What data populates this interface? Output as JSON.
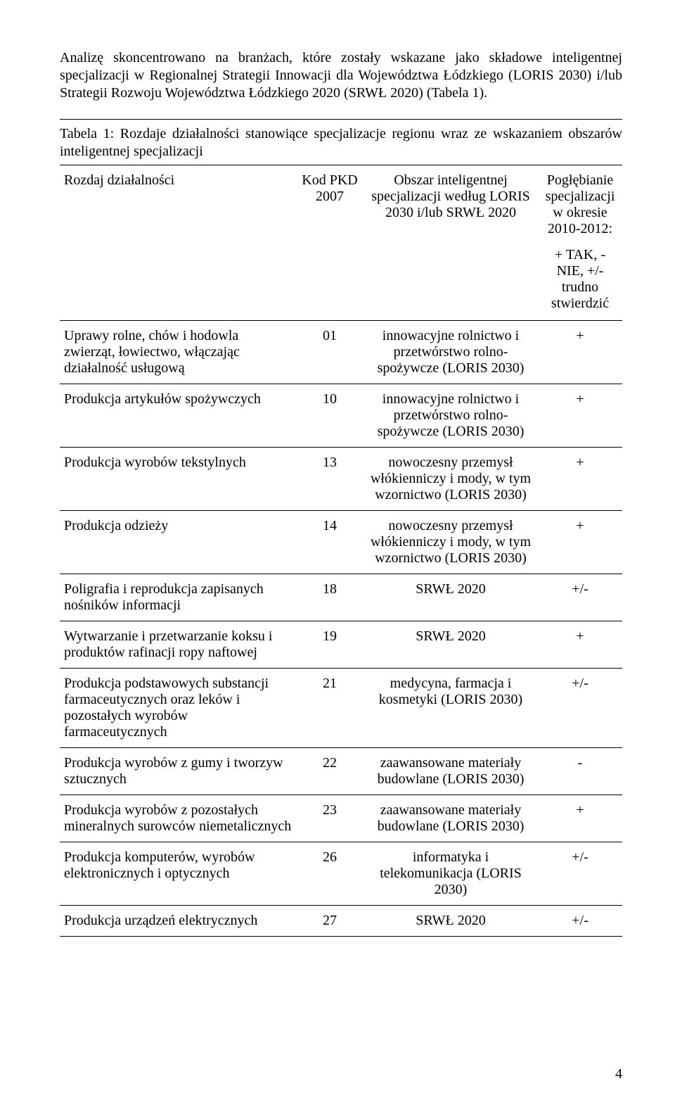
{
  "intro_text": "Analizę skoncentrowano na branżach, które zostały wskazane jako składowe inteligentnej specjalizacji w Regionalnej Strategii Innowacji dla Województwa Łódzkiego (LORIS 2030) i/lub Strategii Rozwoju Województwa Łódzkiego 2020 (SRWŁ 2020) (Tabela 1).",
  "table_caption": "Tabela 1: Rozdaje działalności stanowiące specjalizacje regionu wraz ze wskazaniem obszarów inteligentnej specjalizacji",
  "columns": {
    "col1": "Rozdaj działalności",
    "col2": "Kod PKD 2007",
    "col3": "Obszar inteligentnej specjalizacji według LORIS 2030 i/lub SRWŁ 2020",
    "col4_top": "Pogłębianie specjalizacji w okresie 2010-2012:",
    "col4_sub": "+ TAK, - NIE, +/- trudno stwierdzić"
  },
  "rows": [
    {
      "activity": "Uprawy rolne, chów i hodowla zwierząt, łowiectwo, włączając działalność usługową",
      "code": "01",
      "area": "innowacyjne rolnictwo i przetwórstwo rolno-spożywcze (LORIS 2030)",
      "mark": "+"
    },
    {
      "activity": "Produkcja artykułów spożywczych",
      "code": "10",
      "area": "innowacyjne rolnictwo i przetwórstwo rolno-spożywcze (LORIS 2030)",
      "mark": "+"
    },
    {
      "activity": "Produkcja wyrobów tekstylnych",
      "code": "13",
      "area": "nowoczesny przemysł włókienniczy i mody, w tym wzornictwo (LORIS 2030)",
      "mark": "+"
    },
    {
      "activity": "Produkcja odzieży",
      "code": "14",
      "area": "nowoczesny przemysł włókienniczy i mody, w tym wzornictwo (LORIS 2030)",
      "mark": "+"
    },
    {
      "activity": "Poligrafia i reprodukcja zapisanych nośników informacji",
      "code": "18",
      "area": "SRWŁ 2020",
      "mark": "+/-"
    },
    {
      "activity": "Wytwarzanie i przetwarzanie koksu i produktów rafinacji ropy naftowej",
      "code": "19",
      "area": "SRWŁ 2020",
      "mark": "+"
    },
    {
      "activity": "Produkcja podstawowych substancji farmaceutycznych oraz leków i pozostałych wyrobów farmaceutycznych",
      "code": "21",
      "area": "medycyna, farmacja i kosmetyki (LORIS 2030)",
      "mark": "+/-"
    },
    {
      "activity": "Produkcja wyrobów z gumy i tworzyw sztucznych",
      "code": "22",
      "area": "zaawansowane materiały budowlane (LORIS 2030)",
      "mark": "-"
    },
    {
      "activity": "Produkcja wyrobów z pozostałych mineralnych surowców niemetalicznych",
      "code": "23",
      "area": "zaawansowane materiały budowlane (LORIS 2030)",
      "mark": "+"
    },
    {
      "activity": "Produkcja komputerów, wyrobów elektronicznych i optycznych",
      "code": "26",
      "area": "informatyka i telekomunikacja (LORIS 2030)",
      "mark": "+/-"
    },
    {
      "activity": "Produkcja urządzeń elektrycznych",
      "code": "27",
      "area": "SRWŁ 2020",
      "mark": "+/-"
    }
  ],
  "page_number": "4"
}
